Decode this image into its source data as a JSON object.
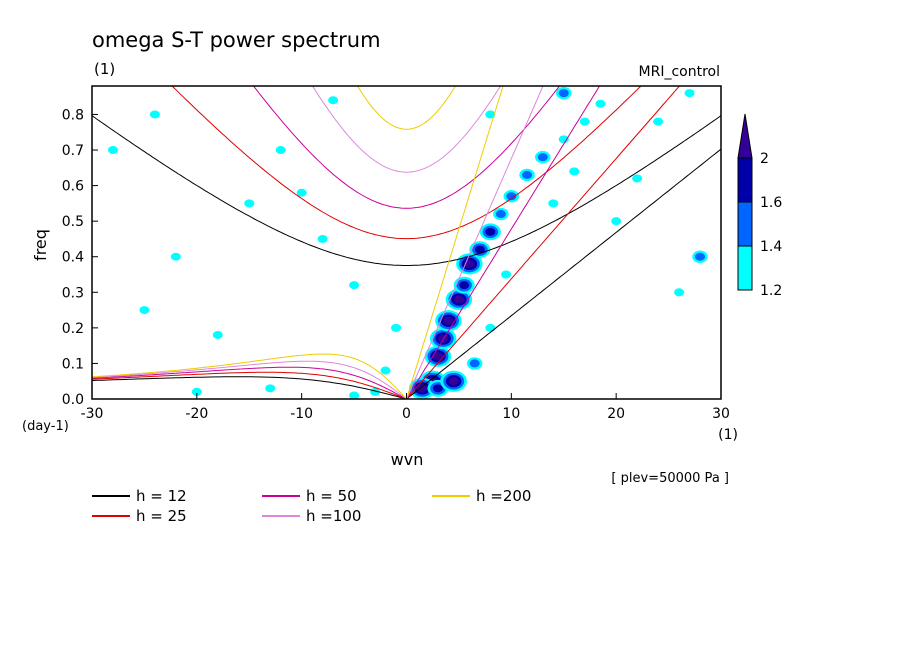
{
  "chart_data": {
    "type": "heatmap",
    "title": "omega S-T power spectrum",
    "subtitle": "(1)",
    "model": "MRI_control",
    "xlabel": "wvn",
    "x_unit": "(1)",
    "ylabel": "freq",
    "y_unit": "(day-1)",
    "xlim": [
      -30,
      30
    ],
    "ylim": [
      0.0,
      0.88
    ],
    "xticks": [
      "-30",
      "-20",
      "-10",
      "0",
      "10",
      "20",
      "30"
    ],
    "yticks": [
      "0.0",
      "0.1",
      "0.2",
      "0.3",
      "0.4",
      "0.5",
      "0.6",
      "0.7",
      "0.8"
    ],
    "level_label": "[ plev=50000 Pa ]",
    "colorbar": {
      "levels": [
        "1.2",
        "1.4",
        "1.6",
        "2"
      ],
      "colors": [
        "#00ffff",
        "#0066ff",
        "#0000aa",
        "#330099"
      ]
    },
    "legend": [
      {
        "label": "h = 12",
        "color": "#000000",
        "h": 12
      },
      {
        "label": "h = 25",
        "color": "#e00000",
        "h": 25
      },
      {
        "label": "h = 50",
        "color": "#cc0099",
        "h": 50
      },
      {
        "label": "h =100",
        "color": "#dd88dd",
        "h": 100
      },
      {
        "label": "h =200",
        "color": "#eecc00",
        "h": 200
      }
    ],
    "blobs": [
      {
        "x": 2.5,
        "y": 0.05,
        "level": 4
      },
      {
        "x": 3.0,
        "y": 0.12,
        "level": 4
      },
      {
        "x": 3.5,
        "y": 0.17,
        "level": 4
      },
      {
        "x": 4.0,
        "y": 0.22,
        "level": 4
      },
      {
        "x": 5.0,
        "y": 0.28,
        "level": 4
      },
      {
        "x": 5.5,
        "y": 0.32,
        "level": 3
      },
      {
        "x": 6.0,
        "y": 0.38,
        "level": 4
      },
      {
        "x": 7.0,
        "y": 0.42,
        "level": 3
      },
      {
        "x": 8.0,
        "y": 0.47,
        "level": 3
      },
      {
        "x": 9.0,
        "y": 0.52,
        "level": 2
      },
      {
        "x": 10.0,
        "y": 0.57,
        "level": 2
      },
      {
        "x": 11.5,
        "y": 0.63,
        "level": 2
      },
      {
        "x": 13.0,
        "y": 0.68,
        "level": 2
      },
      {
        "x": 15.0,
        "y": 0.73,
        "level": 1
      },
      {
        "x": 17.0,
        "y": 0.78,
        "level": 1
      },
      {
        "x": 18.5,
        "y": 0.83,
        "level": 1
      },
      {
        "x": 1.5,
        "y": 0.03,
        "level": 4
      },
      {
        "x": 3.0,
        "y": 0.03,
        "level": 3
      },
      {
        "x": 4.5,
        "y": 0.05,
        "level": 4
      },
      {
        "x": 6.5,
        "y": 0.1,
        "level": 2
      },
      {
        "x": 8.0,
        "y": 0.2,
        "level": 1
      },
      {
        "x": 9.5,
        "y": 0.35,
        "level": 1
      },
      {
        "x": -3.0,
        "y": 0.02,
        "level": 1
      },
      {
        "x": -5.0,
        "y": 0.01,
        "level": 1
      },
      {
        "x": -13.0,
        "y": 0.03,
        "level": 1
      },
      {
        "x": -20.0,
        "y": 0.02,
        "level": 1
      },
      {
        "x": -25.0,
        "y": 0.25,
        "level": 1
      },
      {
        "x": -15.0,
        "y": 0.55,
        "level": 1
      },
      {
        "x": -10.0,
        "y": 0.58,
        "level": 1
      },
      {
        "x": -12.0,
        "y": 0.7,
        "level": 1
      },
      {
        "x": -22.0,
        "y": 0.4,
        "level": 1
      },
      {
        "x": -28.0,
        "y": 0.7,
        "level": 1
      },
      {
        "x": -8.0,
        "y": 0.45,
        "level": 1
      },
      {
        "x": -5.0,
        "y": 0.32,
        "level": 1
      },
      {
        "x": -18.0,
        "y": 0.18,
        "level": 1
      },
      {
        "x": 22.0,
        "y": 0.62,
        "level": 1
      },
      {
        "x": 24.0,
        "y": 0.78,
        "level": 1
      },
      {
        "x": 28.0,
        "y": 0.4,
        "level": 2
      },
      {
        "x": 26.0,
        "y": 0.3,
        "level": 1
      },
      {
        "x": 20.0,
        "y": 0.5,
        "level": 1
      },
      {
        "x": 27.0,
        "y": 0.86,
        "level": 1
      },
      {
        "x": 16.0,
        "y": 0.64,
        "level": 1
      },
      {
        "x": 14.0,
        "y": 0.55,
        "level": 1
      },
      {
        "x": -1.0,
        "y": 0.2,
        "level": 1
      },
      {
        "x": -2.0,
        "y": 0.08,
        "level": 1
      },
      {
        "x": -24.0,
        "y": 0.8,
        "level": 1
      },
      {
        "x": -7.0,
        "y": 0.84,
        "level": 1
      },
      {
        "x": 8.0,
        "y": 0.8,
        "level": 1
      },
      {
        "x": 15.0,
        "y": 0.86,
        "level": 2
      }
    ]
  }
}
